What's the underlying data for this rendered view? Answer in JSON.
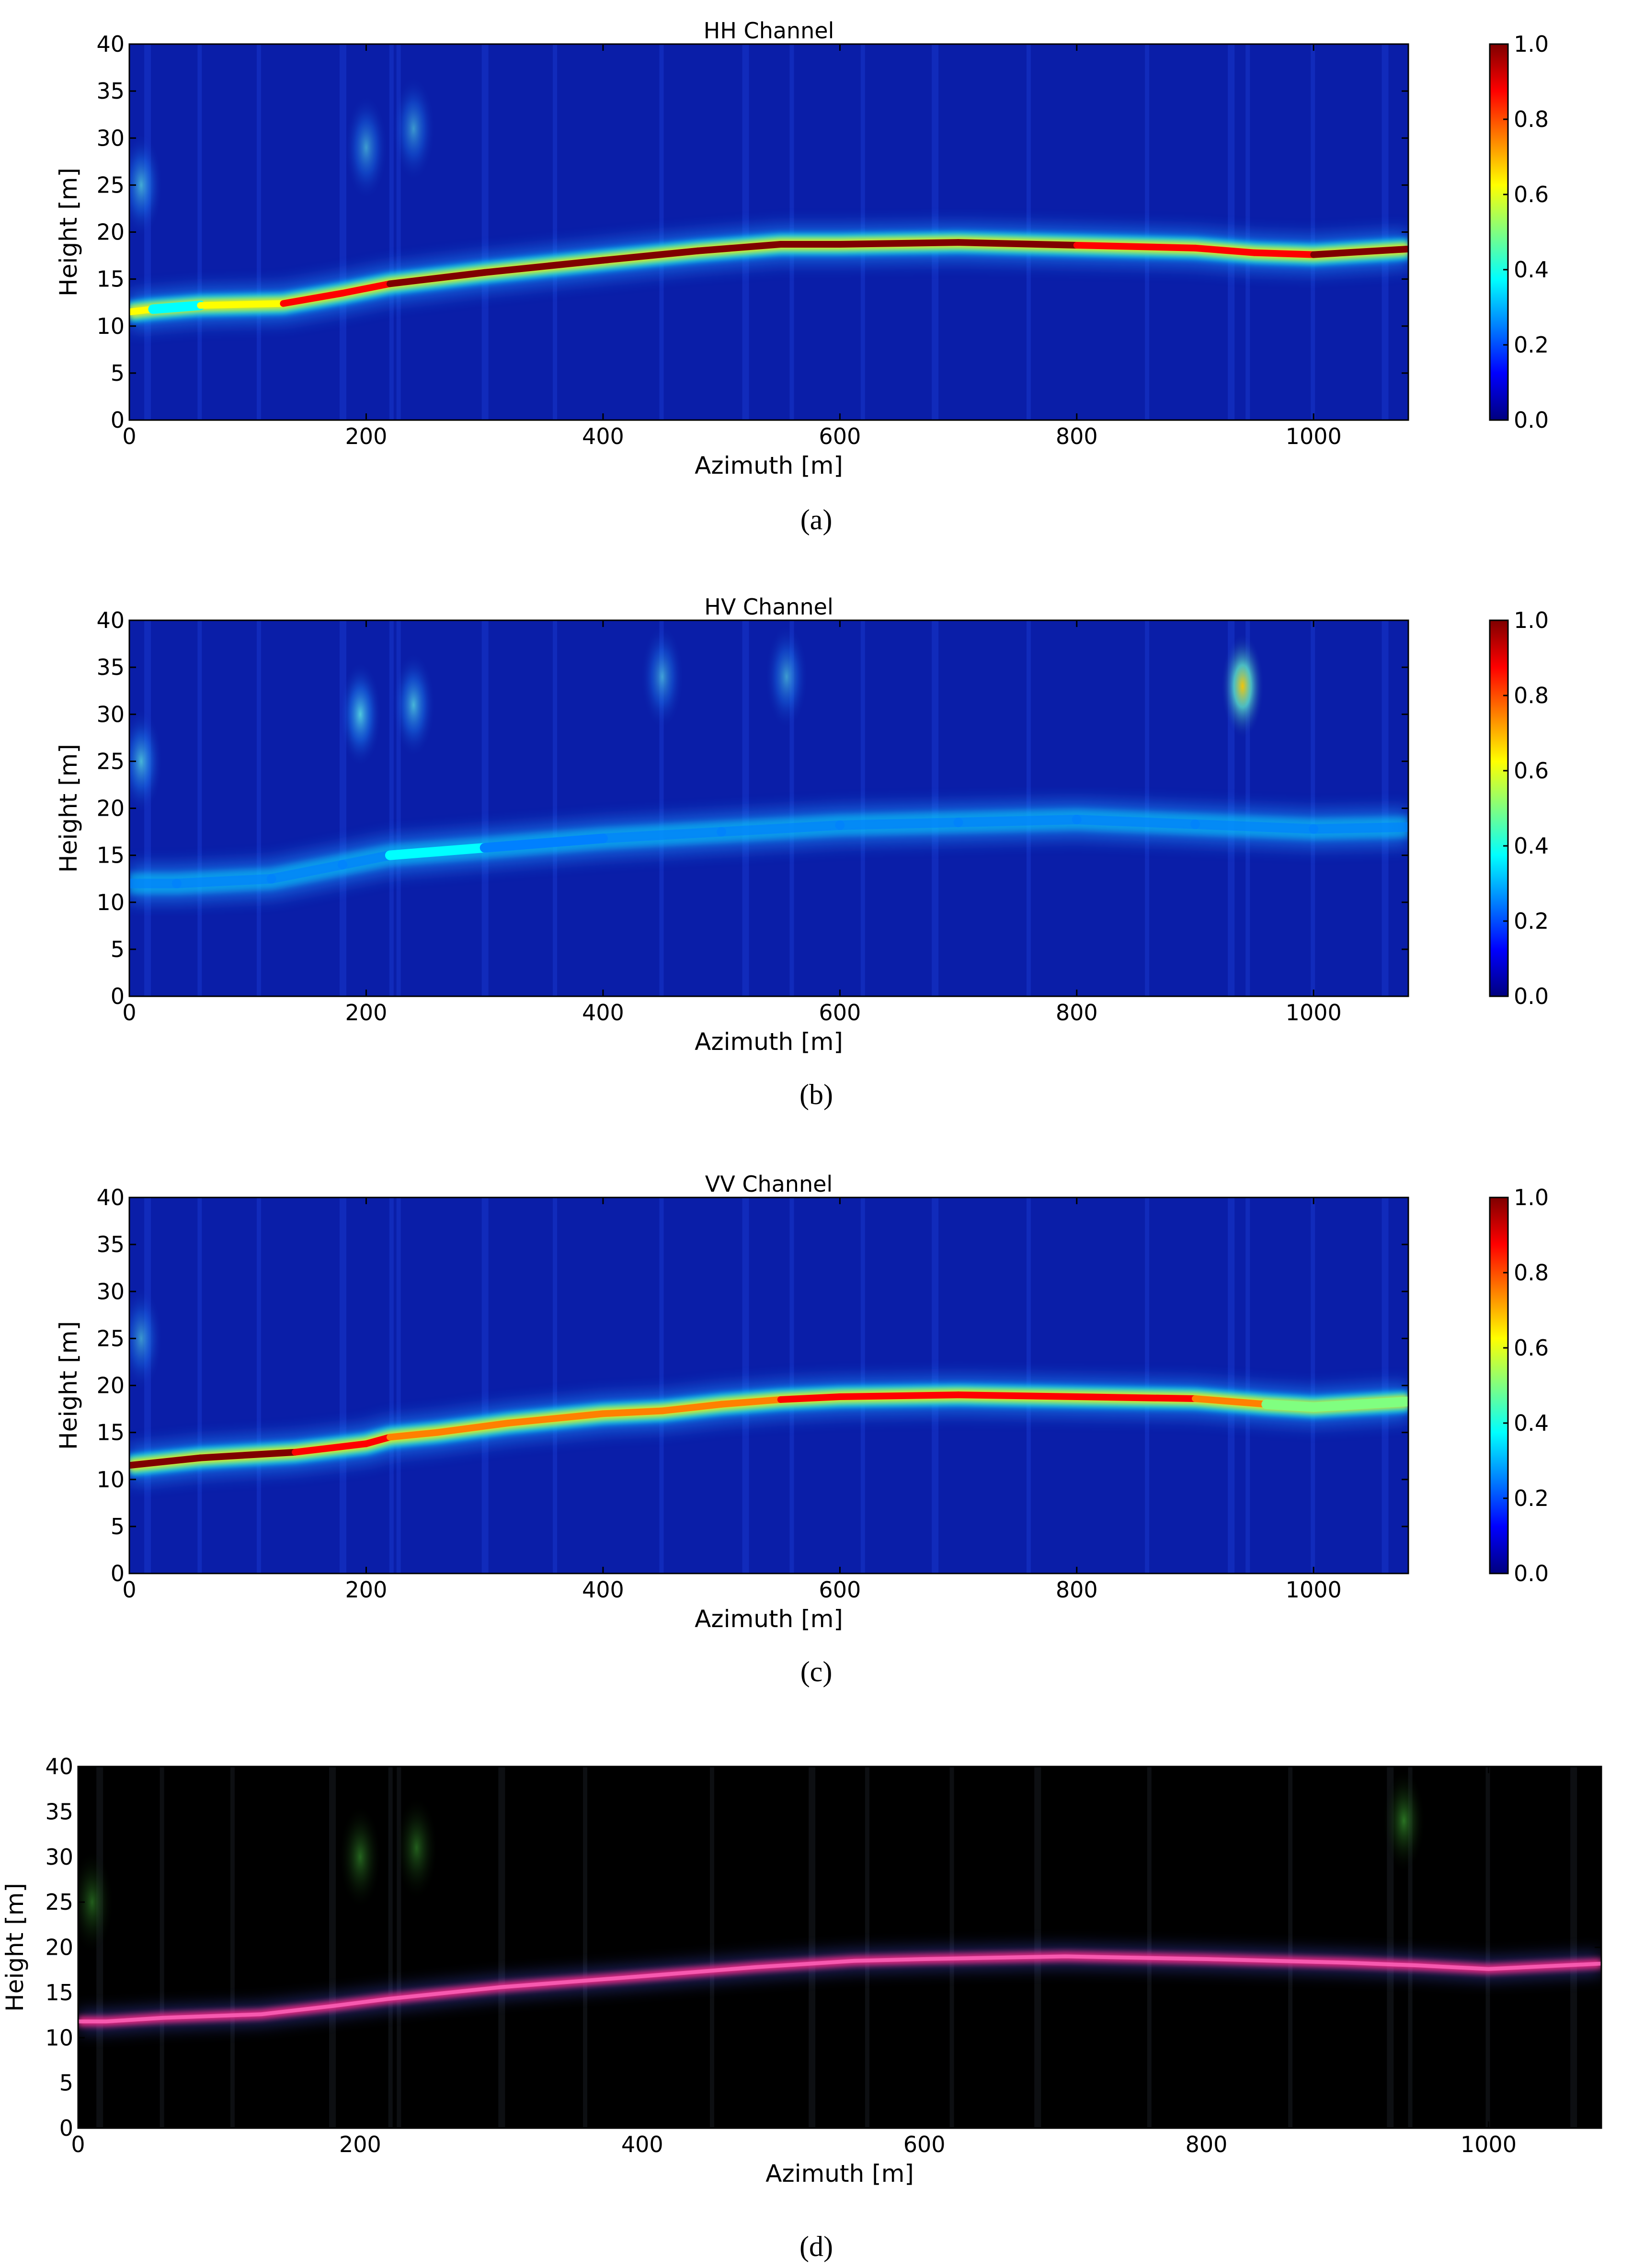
{
  "figure": {
    "captions": [
      "(a)",
      "(b)",
      "(c)",
      "(d)"
    ]
  },
  "colormap": {
    "name": "jet",
    "ticks": [
      "0.0",
      "0.2",
      "0.4",
      "0.6",
      "0.8",
      "1.0"
    ],
    "stops": [
      "#00007f",
      "#0000ff",
      "#0080ff",
      "#00ffff",
      "#80ff80",
      "#ffff00",
      "#ff8000",
      "#ff0000",
      "#7f0000"
    ],
    "background": "#0a1ea8"
  },
  "chart_data": [
    {
      "type": "heatmap",
      "title": "HH Channel",
      "xlabel": "Azimuth [m]",
      "ylabel": "Height [m]",
      "xlim": [
        0,
        1080
      ],
      "ylim": [
        0,
        40
      ],
      "xticks": [
        "0",
        "200",
        "400",
        "600",
        "800",
        "1000"
      ],
      "yticks": [
        "0",
        "5",
        "10",
        "15",
        "20",
        "25",
        "30",
        "35",
        "40"
      ],
      "colorbar_range": [
        0.0,
        1.0
      ],
      "ridge": {
        "azimuth": [
          0,
          20,
          60,
          130,
          180,
          220,
          300,
          400,
          480,
          550,
          600,
          700,
          800,
          900,
          950,
          1000,
          1080
        ],
        "height": [
          11.5,
          11.8,
          12.2,
          12.4,
          13.5,
          14.5,
          15.7,
          17.0,
          18.0,
          18.7,
          18.7,
          18.9,
          18.6,
          18.3,
          17.8,
          17.6,
          18.2
        ],
        "intensity": [
          0.9,
          0.35,
          0.45,
          0.8,
          0.9,
          0.95,
          0.95,
          0.95,
          0.95,
          0.95,
          0.95,
          0.95,
          0.95,
          0.9,
          0.9,
          0.95,
          0.95
        ]
      },
      "scatterers": [
        {
          "azimuth": 10,
          "height": 25,
          "intensity": 0.3
        },
        {
          "azimuth": 200,
          "height": 29,
          "intensity": 0.22
        },
        {
          "azimuth": 240,
          "height": 31,
          "intensity": 0.2
        }
      ]
    },
    {
      "type": "heatmap",
      "title": "HV Channel",
      "xlabel": "Azimuth [m]",
      "ylabel": "Height [m]",
      "xlim": [
        0,
        1080
      ],
      "ylim": [
        0,
        40
      ],
      "xticks": [
        "0",
        "200",
        "400",
        "600",
        "800",
        "1000"
      ],
      "yticks": [
        "0",
        "5",
        "10",
        "15",
        "20",
        "25",
        "30",
        "35",
        "40"
      ],
      "colorbar_range": [
        0.0,
        1.0
      ],
      "ridge": {
        "azimuth": [
          0,
          40,
          120,
          180,
          220,
          300,
          400,
          500,
          600,
          700,
          800,
          900,
          1000,
          1080
        ],
        "height": [
          12,
          12,
          12.5,
          14,
          15,
          15.8,
          16.8,
          17.5,
          18.2,
          18.5,
          18.8,
          18.3,
          17.8,
          18.0
        ],
        "intensity": [
          0.2,
          0.25,
          0.15,
          0.3,
          0.3,
          0.4,
          0.2,
          0.2,
          0.25,
          0.2,
          0.2,
          0.25,
          0.25,
          0.25
        ]
      },
      "scatterers": [
        {
          "azimuth": 10,
          "height": 25,
          "intensity": 0.35
        },
        {
          "azimuth": 195,
          "height": 30,
          "intensity": 0.45
        },
        {
          "azimuth": 240,
          "height": 31,
          "intensity": 0.35
        },
        {
          "azimuth": 450,
          "height": 34,
          "intensity": 0.22
        },
        {
          "azimuth": 555,
          "height": 34,
          "intensity": 0.22
        },
        {
          "azimuth": 940,
          "height": 33,
          "intensity": 0.7
        }
      ]
    },
    {
      "type": "heatmap",
      "title": "VV Channel",
      "xlabel": "Azimuth [m]",
      "ylabel": "Height [m]",
      "xlim": [
        0,
        1080
      ],
      "ylim": [
        0,
        40
      ],
      "xticks": [
        "0",
        "200",
        "400",
        "600",
        "800",
        "1000"
      ],
      "yticks": [
        "0",
        "5",
        "10",
        "15",
        "20",
        "25",
        "30",
        "35",
        "40"
      ],
      "colorbar_range": [
        0.0,
        1.0
      ],
      "ridge": {
        "azimuth": [
          0,
          60,
          140,
          200,
          220,
          260,
          320,
          400,
          450,
          500,
          550,
          600,
          700,
          800,
          900,
          960,
          1000,
          1080
        ],
        "height": [
          11.5,
          12.3,
          12.9,
          13.8,
          14.5,
          15.0,
          16.0,
          17.0,
          17.3,
          18.0,
          18.5,
          18.8,
          19.0,
          18.8,
          18.6,
          18.0,
          17.7,
          18.3
        ],
        "intensity": [
          0.95,
          0.95,
          0.95,
          0.85,
          0.9,
          0.6,
          0.9,
          0.55,
          0.85,
          0.6,
          0.95,
          0.9,
          0.95,
          0.8,
          0.95,
          0.55,
          0.5,
          0.55
        ]
      },
      "scatterers": [
        {
          "azimuth": 10,
          "height": 25,
          "intensity": 0.2
        }
      ]
    },
    {
      "type": "heatmap",
      "title": "",
      "xlabel": "Azimuth [m]",
      "ylabel": "Height [m]",
      "xlim": [
        0,
        1080
      ],
      "ylim": [
        0,
        40
      ],
      "xticks": [
        "0",
        "200",
        "400",
        "600",
        "800",
        "1000"
      ],
      "yticks": [
        "0",
        "5",
        "10",
        "15",
        "20",
        "25",
        "30",
        "35",
        "40"
      ],
      "rgb_composite": true,
      "ridge": {
        "azimuth": [
          0,
          20,
          60,
          130,
          180,
          220,
          300,
          400,
          480,
          550,
          600,
          700,
          800,
          900,
          950,
          1000,
          1080
        ],
        "height": [
          11.8,
          11.8,
          12.2,
          12.6,
          13.5,
          14.3,
          15.6,
          16.8,
          17.8,
          18.5,
          18.7,
          19.0,
          18.7,
          18.3,
          18.0,
          17.6,
          18.2
        ],
        "intensity": [
          0.9,
          0.8,
          0.8,
          0.85,
          0.85,
          0.9,
          0.9,
          0.9,
          0.95,
          0.95,
          0.95,
          0.95,
          0.95,
          0.9,
          0.9,
          0.95,
          0.95
        ]
      },
      "scatterers": [
        {
          "azimuth": 10,
          "height": 25,
          "intensity": 0.25
        },
        {
          "azimuth": 200,
          "height": 30,
          "intensity": 0.3
        },
        {
          "azimuth": 240,
          "height": 31,
          "intensity": 0.25
        },
        {
          "azimuth": 940,
          "height": 34,
          "intensity": 0.4
        }
      ]
    }
  ]
}
